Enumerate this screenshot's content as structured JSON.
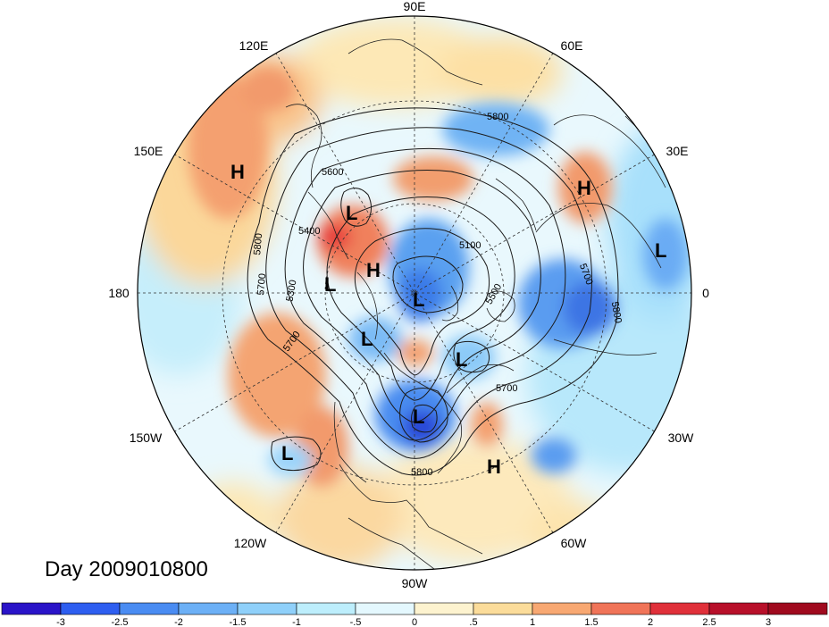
{
  "title": "Day 2009010800",
  "longitude_labels": [
    "90E",
    "60E",
    "30E",
    "0",
    "30W",
    "60W",
    "90W",
    "120W",
    "150W",
    "180",
    "150E",
    "120E"
  ],
  "pressure_centers": [
    {
      "id": "h-east-siberia",
      "type": "H"
    },
    {
      "id": "l-bering",
      "type": "L"
    },
    {
      "id": "h-alaska",
      "type": "H"
    },
    {
      "id": "l-alaska-gulf",
      "type": "L"
    },
    {
      "id": "l-arctic",
      "type": "L"
    },
    {
      "id": "l-hudson",
      "type": "L"
    },
    {
      "id": "l-labrador",
      "type": "L"
    },
    {
      "id": "l-great-lakes",
      "type": "L"
    },
    {
      "id": "l-pacific",
      "type": "L"
    },
    {
      "id": "h-atlantic-sw",
      "type": "H"
    },
    {
      "id": "h-russia",
      "type": "H"
    },
    {
      "id": "l-europe",
      "type": "L"
    }
  ],
  "contour_labels": [
    "5800",
    "5600",
    "5400",
    "5800",
    "5700",
    "5300",
    "5100",
    "5500",
    "5700",
    "5800",
    "5700",
    "5700",
    "5800"
  ],
  "colorbar": {
    "ticks": [
      "-3",
      "-2.5",
      "-2",
      "-1.5",
      "-1",
      "-.5",
      "0",
      ".5",
      "1",
      "1.5",
      "2",
      "2.5",
      "3"
    ],
    "colors": [
      "#2a14c8",
      "#2e5ef0",
      "#4a8cf2",
      "#6cb0f6",
      "#8fd0fa",
      "#bdeefc",
      "#e4f8fe",
      "#fdf3cf",
      "#fbdc9a",
      "#f8a872",
      "#f07458",
      "#e0303a",
      "#b8102a",
      "#a00a1e"
    ]
  }
}
